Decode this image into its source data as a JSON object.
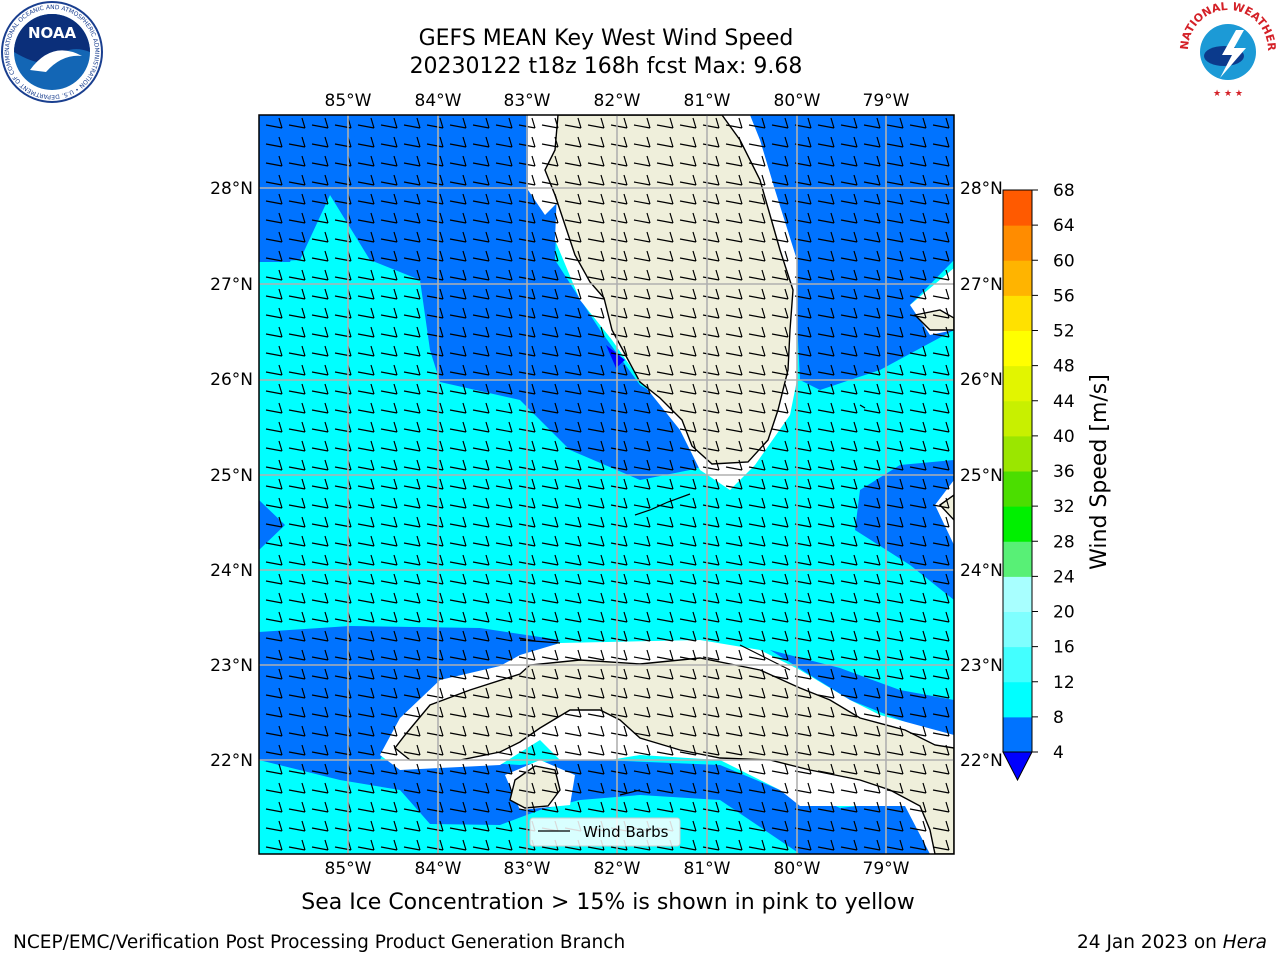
{
  "title": {
    "line1": "GEFS MEAN Key West Wind Speed",
    "line2": "20230122 t18z 168h fcst   Max: 9.68"
  },
  "logos": {
    "noaa_text": "NOAA",
    "noaa_ring": "NATIONAL OCEANIC AND ATMOSPHERIC ADMINISTRATION • U.S. DEPARTMENT OF COMMERCE",
    "nws_ring": "NATIONAL WEATHER SERVICE"
  },
  "map": {
    "lon_labels": [
      "85°W",
      "84°W",
      "83°W",
      "82°W",
      "81°W",
      "80°W",
      "79°W"
    ],
    "lat_labels": [
      "28°N",
      "27°N",
      "26°N",
      "25°N",
      "24°N",
      "23°N",
      "22°N"
    ],
    "legend_label": "Wind Barbs"
  },
  "colorbar": {
    "label": "Wind Speed [m/s]",
    "ticks": [
      "4",
      "8",
      "12",
      "16",
      "20",
      "24",
      "28",
      "32",
      "36",
      "40",
      "44",
      "48",
      "52",
      "56",
      "60",
      "64",
      "68"
    ],
    "colors": [
      "#0073ff",
      "#00ffff",
      "#43ffff",
      "#7fffff",
      "#a8ffff",
      "#58f076",
      "#00f000",
      "#4bde00",
      "#9be600",
      "#c8f000",
      "#e2f500",
      "#ffff00",
      "#ffe100",
      "#ffb400",
      "#ff8c00",
      "#ff5a00",
      "#ff2800",
      "#ff0000"
    ],
    "under_color": "#0000ff"
  },
  "caption": "Sea Ice Concentration > 15% is shown in pink to yellow",
  "footer": {
    "left": "NCEP/EMC/Verification Post Processing Product Generation Branch",
    "right_date": "24 Jan 2023 on ",
    "right_host": "Hera"
  }
}
